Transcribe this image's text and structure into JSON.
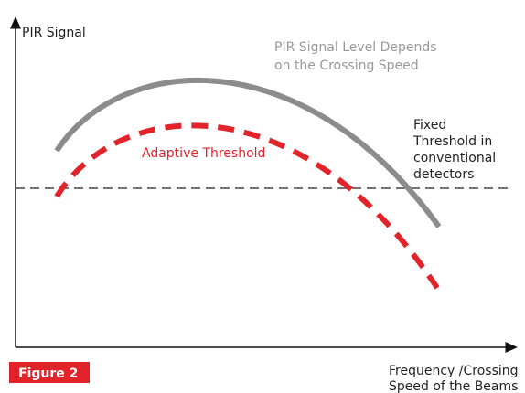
{
  "axes": {
    "y_label": "PIR Signal",
    "x_label": [
      "Frequency /Crossing",
      "Speed of the Beams"
    ]
  },
  "annotations": {
    "signal_curve": [
      "PIR Signal Level Depends",
      "on the Crossing Speed"
    ],
    "adaptive_threshold": "Adaptive Threshold",
    "fixed_threshold": [
      "Fixed",
      "Threshold in",
      "conventional",
      "detectors"
    ]
  },
  "figure_label": "Figure 2"
}
